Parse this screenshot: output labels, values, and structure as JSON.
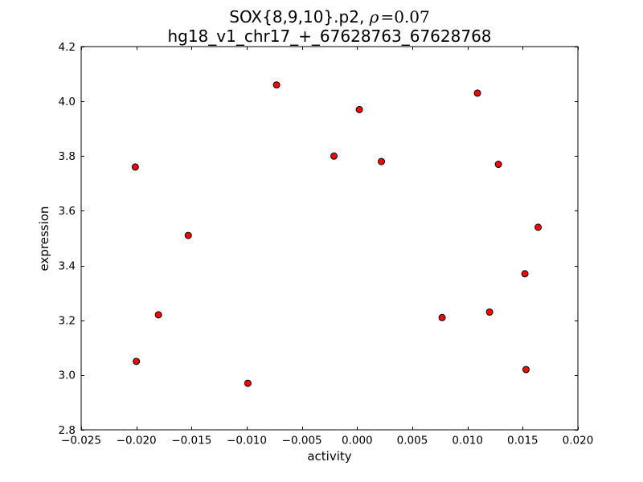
{
  "figure": {
    "title_prefix": "SOX{8,9,10}.p2, ",
    "title_rho": "ρ",
    "title_rho_eq": "=0.07",
    "subtitle": "hg18_v1_chr17_+_67628763_67628768"
  },
  "chart_data": {
    "type": "scatter",
    "title": "SOX{8,9,10}.p2, ρ=0.07",
    "subtitle": "hg18_v1_chr17_+_67628763_67628768",
    "correlation_rho": 0.07,
    "xlabel": "activity",
    "ylabel": "expression",
    "xlim": [
      -0.025,
      0.02
    ],
    "ylim": [
      2.8,
      4.2
    ],
    "grid": false,
    "legend": null,
    "xticks": {
      "values": [
        -0.025,
        -0.02,
        -0.015,
        -0.01,
        -0.005,
        0.0,
        0.005,
        0.01,
        0.015,
        0.02
      ],
      "labels": [
        "−0.025",
        "−0.020",
        "−0.015",
        "−0.010",
        "−0.005",
        "0.000",
        "0.005",
        "0.010",
        "0.015",
        "0.020"
      ]
    },
    "yticks": {
      "values": [
        2.8,
        3.0,
        3.2,
        3.4,
        3.6,
        3.8,
        4.0,
        4.2
      ],
      "labels": [
        "2.8",
        "3.0",
        "3.2",
        "3.4",
        "3.6",
        "3.8",
        "4.0",
        "4.2"
      ]
    },
    "marker": {
      "shape": "circle",
      "fill_color": "#ff0000",
      "edge_color": "#000000",
      "radius_px": 4
    },
    "points": [
      [
        -0.0201,
        3.76
      ],
      [
        -0.0073,
        4.06
      ],
      [
        0.0002,
        3.97
      ],
      [
        0.0109,
        4.03
      ],
      [
        -0.0021,
        3.8
      ],
      [
        0.0022,
        3.78
      ],
      [
        0.0128,
        3.77
      ],
      [
        -0.0153,
        3.51
      ],
      [
        0.0164,
        3.54
      ],
      [
        0.0152,
        3.37
      ],
      [
        -0.018,
        3.22
      ],
      [
        0.0077,
        3.21
      ],
      [
        0.012,
        3.23
      ],
      [
        -0.02,
        3.05
      ],
      [
        0.0153,
        3.02
      ],
      [
        -0.0099,
        2.97
      ]
    ]
  }
}
